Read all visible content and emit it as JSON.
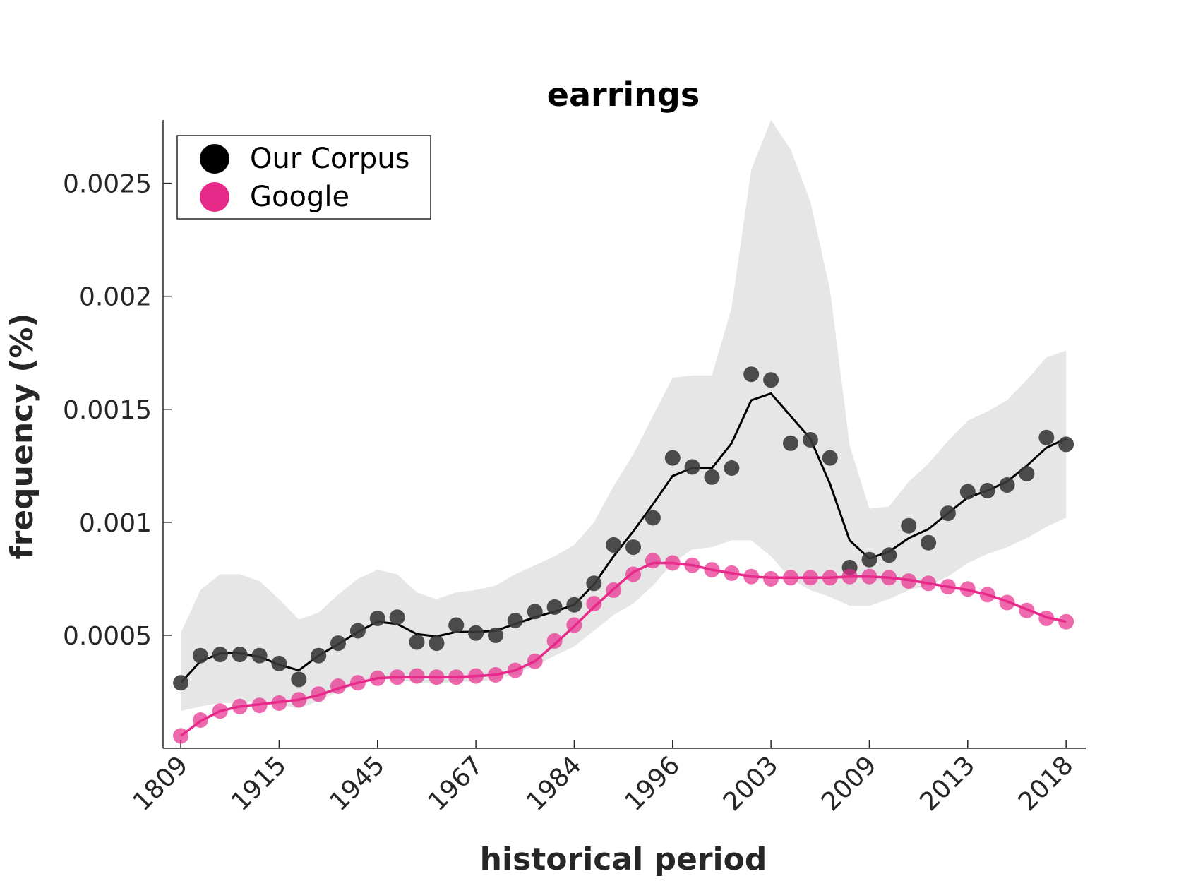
{
  "chart_data": {
    "type": "line",
    "title": "earrings",
    "xlabel": "historical period",
    "ylabel": "frequency (%)",
    "x_tick_labels": [
      "1809",
      "1915",
      "1945",
      "1967",
      "1984",
      "1996",
      "2003",
      "2009",
      "2013",
      "2018"
    ],
    "x_tick_positions": [
      1,
      6,
      11,
      16,
      21,
      26,
      31,
      36,
      41,
      46
    ],
    "xlim": [
      0.1,
      47
    ],
    "ylim": [
      0.0,
      0.00278
    ],
    "y_ticks": [
      0.0005,
      0.001,
      0.0015,
      0.002,
      0.0025
    ],
    "y_tick_labels": [
      "0.0005",
      "0.001",
      "0.0015",
      "0.002",
      "0.0025"
    ],
    "legend": {
      "position": "top-left",
      "entries": [
        "Our Corpus",
        "Google"
      ]
    },
    "colors": {
      "corpus": "#000000",
      "corpus_points": "#3a3a3a",
      "google": "#e7298a",
      "band": "#e6e6e6"
    },
    "x": [
      1,
      2,
      3,
      4,
      5,
      6,
      7,
      8,
      9,
      10,
      11,
      12,
      13,
      14,
      15,
      16,
      17,
      18,
      19,
      20,
      21,
      22,
      23,
      24,
      25,
      26,
      27,
      28,
      29,
      30,
      31,
      32,
      33,
      34,
      35,
      36,
      37,
      38,
      39,
      40,
      41,
      42,
      43,
      44,
      45,
      46
    ],
    "series": [
      {
        "name": "Our Corpus",
        "points": [
          0.00029,
          0.00041,
          0.000415,
          0.000415,
          0.00041,
          0.000375,
          0.000305,
          0.00041,
          0.000465,
          0.00052,
          0.000575,
          0.00058,
          0.00047,
          0.000465,
          0.000545,
          0.00051,
          0.0005,
          0.000565,
          0.000605,
          0.000625,
          0.000635,
          0.00073,
          0.0009,
          0.00089,
          0.00102,
          0.001285,
          0.001245,
          0.0012,
          0.00124,
          0.001655,
          0.00163,
          0.00135,
          0.001365,
          0.001285,
          0.0008,
          0.000835,
          0.000855,
          0.000985,
          0.00091,
          0.00104,
          0.001135,
          0.00114,
          0.001165,
          0.001215,
          0.001375,
          0.001345
        ],
        "smooth": [
          0.00029,
          0.000385,
          0.00042,
          0.00042,
          0.000405,
          0.00037,
          0.000345,
          0.00041,
          0.00046,
          0.000515,
          0.00056,
          0.00055,
          0.000505,
          0.000495,
          0.000515,
          0.000515,
          0.00052,
          0.00055,
          0.00058,
          0.000605,
          0.000635,
          0.000725,
          0.00085,
          0.00096,
          0.00108,
          0.001205,
          0.00124,
          0.00124,
          0.00135,
          0.00154,
          0.00157,
          0.00147,
          0.00137,
          0.00117,
          0.00092,
          0.00084,
          0.00087,
          0.00093,
          0.00097,
          0.00104,
          0.00111,
          0.00114,
          0.00118,
          0.00125,
          0.00133,
          0.00137
        ],
        "band_upper": [
          0.00051,
          0.0007,
          0.00077,
          0.00077,
          0.00074,
          0.00066,
          0.00057,
          0.0006,
          0.00068,
          0.00075,
          0.00079,
          0.00077,
          0.00069,
          0.00066,
          0.00069,
          0.0007,
          0.00072,
          0.00077,
          0.00081,
          0.00085,
          0.0009,
          0.001,
          0.00116,
          0.0013,
          0.00147,
          0.00164,
          0.00165,
          0.00165,
          0.00195,
          0.00256,
          0.00278,
          0.00265,
          0.00242,
          0.00203,
          0.00134,
          0.00106,
          0.00107,
          0.00118,
          0.00126,
          0.00136,
          0.00145,
          0.00149,
          0.00154,
          0.00163,
          0.00173,
          0.00176
        ],
        "band_lower": [
          0.000165,
          0.000185,
          0.0002,
          0.0002,
          0.000205,
          0.000195,
          0.000175,
          0.00021,
          0.00025,
          0.000285,
          0.000305,
          0.000305,
          0.00029,
          0.000285,
          0.000295,
          0.000295,
          0.000305,
          0.00033,
          0.000365,
          0.00041,
          0.00045,
          0.00052,
          0.00059,
          0.00064,
          0.00072,
          0.00082,
          0.00088,
          0.00089,
          0.00092,
          0.00092,
          0.00085,
          0.00075,
          0.0007,
          0.00067,
          0.00063,
          0.00063,
          0.00066,
          0.0007,
          0.00072,
          0.00076,
          0.00082,
          0.00086,
          0.00089,
          0.00093,
          0.00098,
          0.00102
        ]
      },
      {
        "name": "Google",
        "points": [
          5.5e-05,
          0.000125,
          0.000165,
          0.000185,
          0.00019,
          0.0002,
          0.000215,
          0.00024,
          0.000275,
          0.00029,
          0.00031,
          0.000315,
          0.00032,
          0.000315,
          0.000315,
          0.00032,
          0.000325,
          0.000345,
          0.000385,
          0.000475,
          0.000545,
          0.00064,
          0.0007,
          0.00077,
          0.00083,
          0.00082,
          0.00081,
          0.00079,
          0.000775,
          0.00076,
          0.00075,
          0.000755,
          0.000755,
          0.000755,
          0.00076,
          0.00076,
          0.000755,
          0.00074,
          0.00073,
          0.000715,
          0.000705,
          0.00068,
          0.000645,
          0.00061,
          0.000575,
          0.00056
        ],
        "smooth": [
          5.5e-05,
          0.00012,
          0.000165,
          0.000185,
          0.000195,
          0.000205,
          0.000215,
          0.000235,
          0.000265,
          0.00029,
          0.00031,
          0.000315,
          0.000315,
          0.000315,
          0.000315,
          0.00032,
          0.000325,
          0.000345,
          0.000385,
          0.00046,
          0.00054,
          0.000625,
          0.000705,
          0.00078,
          0.00082,
          0.00082,
          0.00081,
          0.00079,
          0.000775,
          0.00076,
          0.000755,
          0.000755,
          0.000755,
          0.000755,
          0.00076,
          0.00076,
          0.000755,
          0.000745,
          0.00073,
          0.000715,
          0.0007,
          0.00068,
          0.00065,
          0.000615,
          0.00058,
          0.00056
        ]
      }
    ]
  }
}
